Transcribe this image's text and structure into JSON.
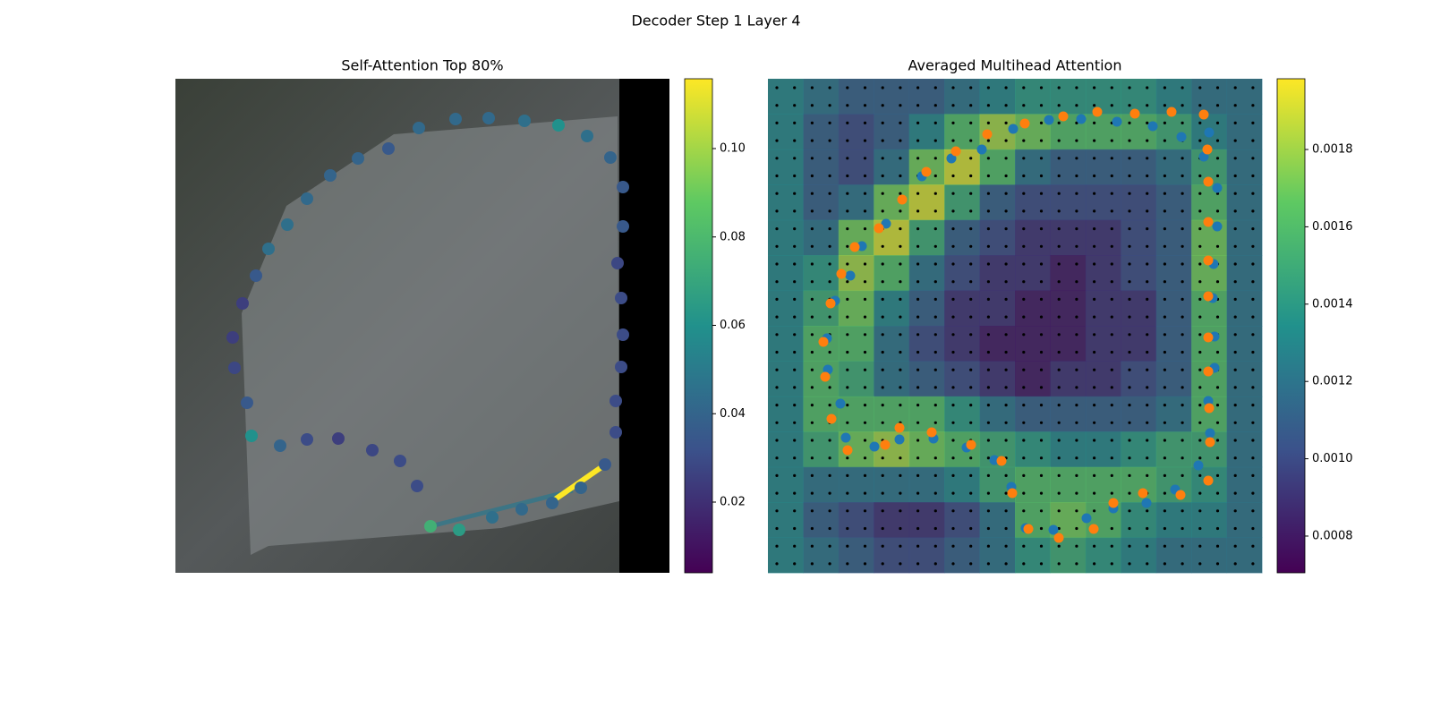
{
  "title": "Decoder Step 1 Layer 4",
  "chart_data": [
    {
      "type": "scatter",
      "title": "Self-Attention Top 80%",
      "cmap": "viridis",
      "xlim": [
        0,
        552
      ],
      "ylim": [
        552,
        0
      ],
      "x": [
        285,
        317,
        354,
        387,
        421,
        453,
        480,
        492,
        492,
        498,
        500,
        498,
        494,
        500,
        500,
        486,
        460,
        428,
        390,
        350,
        313,
        272,
        238,
        204,
        173,
        147,
        125,
        104,
        90,
        75,
        64,
        66,
        80,
        85,
        117,
        147,
        182,
        220,
        251,
        270
      ],
      "y": [
        500,
        504,
        490,
        481,
        474,
        457,
        431,
        395,
        360,
        322,
        286,
        245,
        206,
        165,
        121,
        88,
        64,
        52,
        47,
        44,
        45,
        55,
        78,
        89,
        108,
        134,
        163,
        190,
        220,
        251,
        289,
        323,
        362,
        399,
        410,
        403,
        402,
        415,
        427,
        455
      ],
      "values": [
        0.075,
        0.065,
        0.045,
        0.042,
        0.04,
        0.04,
        0.035,
        0.03,
        0.03,
        0.03,
        0.03,
        0.03,
        0.028,
        0.035,
        0.035,
        0.04,
        0.045,
        0.06,
        0.045,
        0.042,
        0.042,
        0.042,
        0.035,
        0.04,
        0.04,
        0.042,
        0.045,
        0.045,
        0.035,
        0.025,
        0.025,
        0.028,
        0.035,
        0.06,
        0.04,
        0.03,
        0.025,
        0.028,
        0.03,
        0.03
      ],
      "colorbar": {
        "lim": [
          0.004,
          0.1158
        ],
        "ticks": [
          0.02,
          0.04,
          0.06,
          0.08,
          {
            "value": 0.1,
            "label": "0.10"
          }
        ]
      }
    },
    {
      "type": "heatmap",
      "title": "Averaged Multihead Attention",
      "cmap": "viridis",
      "xlim": [
        0,
        552
      ],
      "ylim": [
        552,
        0
      ],
      "heatmap": [
        [
          0.0013,
          0.0012,
          0.0011,
          0.0011,
          0.0011,
          0.0012,
          0.0013,
          0.0014,
          0.0014,
          0.0014,
          0.0014,
          0.0013,
          0.0012,
          0.0012
        ],
        [
          0.0013,
          0.0011,
          0.001,
          0.0011,
          0.0013,
          0.0016,
          0.0018,
          0.0017,
          0.0016,
          0.0016,
          0.0016,
          0.0015,
          0.0013,
          0.0012
        ],
        [
          0.0013,
          0.0011,
          0.001,
          0.0012,
          0.0017,
          0.0019,
          0.0016,
          0.0012,
          0.0011,
          0.0011,
          0.0011,
          0.0012,
          0.0015,
          0.0012
        ],
        [
          0.0013,
          0.0011,
          0.0012,
          0.0017,
          0.0019,
          0.0015,
          0.0011,
          0.001,
          0.001,
          0.001,
          0.001,
          0.0011,
          0.0016,
          0.0012
        ],
        [
          0.0013,
          0.0012,
          0.0017,
          0.0019,
          0.0015,
          0.0011,
          0.001,
          0.0009,
          0.0009,
          0.0009,
          0.001,
          0.0011,
          0.0017,
          0.0012
        ],
        [
          0.0013,
          0.0014,
          0.0018,
          0.0016,
          0.0012,
          0.001,
          0.0009,
          0.0009,
          0.0008,
          0.0009,
          0.001,
          0.0011,
          0.0017,
          0.0012
        ],
        [
          0.0013,
          0.0015,
          0.0017,
          0.0013,
          0.0011,
          0.0009,
          0.0009,
          0.0008,
          0.0008,
          0.0009,
          0.0009,
          0.0011,
          0.0016,
          0.0012
        ],
        [
          0.0013,
          0.0016,
          0.0016,
          0.0012,
          0.001,
          0.0009,
          0.0008,
          0.0008,
          0.0008,
          0.0009,
          0.0009,
          0.0011,
          0.0016,
          0.0012
        ],
        [
          0.0013,
          0.0016,
          0.0015,
          0.0012,
          0.0011,
          0.001,
          0.0009,
          0.0008,
          0.0009,
          0.0009,
          0.001,
          0.0011,
          0.0016,
          0.0012
        ],
        [
          0.0013,
          0.0016,
          0.0016,
          0.0016,
          0.0016,
          0.0014,
          0.0012,
          0.0011,
          0.0011,
          0.0011,
          0.0011,
          0.0012,
          0.0016,
          0.0012
        ],
        [
          0.0013,
          0.0015,
          0.0017,
          0.0018,
          0.0017,
          0.0016,
          0.0015,
          0.0014,
          0.0013,
          0.0013,
          0.0014,
          0.0015,
          0.0015,
          0.0012
        ],
        [
          0.0013,
          0.0012,
          0.0012,
          0.0012,
          0.0012,
          0.0013,
          0.0015,
          0.0016,
          0.0016,
          0.0016,
          0.0016,
          0.0015,
          0.0014,
          0.0012
        ],
        [
          0.0013,
          0.0011,
          0.001,
          0.0009,
          0.0009,
          0.001,
          0.0012,
          0.0016,
          0.0017,
          0.0016,
          0.0014,
          0.0013,
          0.0013,
          0.0012
        ],
        [
          0.0013,
          0.0012,
          0.0011,
          0.001,
          0.001,
          0.0011,
          0.0012,
          0.0014,
          0.0015,
          0.0014,
          0.0013,
          0.0012,
          0.0012,
          0.0012
        ]
      ],
      "series": [
        {
          "color": "#1f77b4",
          "x": [
            493,
            462,
            430,
            390,
            350,
            314,
            274,
            239,
            205,
            172,
            132,
            105,
            92,
            75,
            66,
            67,
            81,
            87,
            119,
            147,
            185,
            222,
            253,
            272,
            288,
            319,
            356,
            386,
            423,
            455,
            481,
            494,
            492,
            499,
            499,
            497,
            498,
            502,
            502,
            487
          ],
          "y": [
            60,
            65,
            53,
            48,
            45,
            46,
            56,
            79,
            89,
            109,
            162,
            187,
            220,
            248,
            290,
            325,
            363,
            401,
            411,
            403,
            402,
            412,
            426,
            456,
            502,
            504,
            491,
            480,
            474,
            459,
            432,
            396,
            360,
            323,
            288,
            245,
            207,
            165,
            122,
            87
          ]
        },
        {
          "color": "#ff7f0e",
          "x": [
            487,
            451,
            410,
            368,
            330,
            287,
            245,
            210,
            177,
            150,
            124,
            97,
            82,
            70,
            62,
            64,
            71,
            89,
            131,
            147,
            183,
            227,
            261,
            273,
            291,
            325,
            364,
            386,
            419,
            461,
            492,
            494,
            493,
            492,
            492,
            492,
            492,
            492,
            492,
            491
          ],
          "y": [
            40,
            37,
            39,
            37,
            42,
            50,
            62,
            81,
            104,
            135,
            167,
            188,
            218,
            251,
            294,
            333,
            380,
            415,
            409,
            390,
            395,
            409,
            427,
            463,
            503,
            513,
            503,
            474,
            463,
            465,
            449,
            406,
            368,
            327,
            289,
            243,
            203,
            160,
            115,
            79
          ]
        }
      ],
      "colorbar": {
        "lim": [
          0.000705,
          0.001983
        ],
        "ticks": [
          0.0008,
          {
            "value": 0.001,
            "label": "0.0010"
          },
          0.0012,
          0.0014,
          0.0016,
          0.0018
        ]
      }
    }
  ]
}
